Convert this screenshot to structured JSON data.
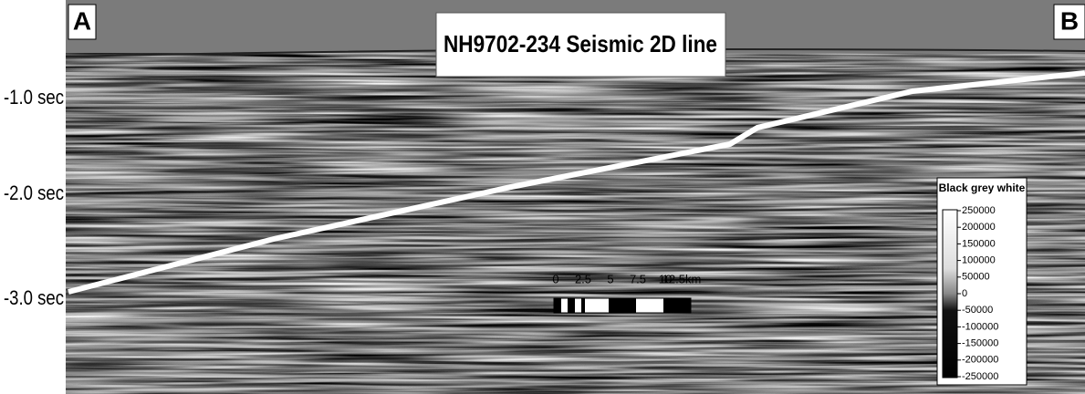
{
  "title": "NH9702-234 Seismic 2D line",
  "corner_labels": {
    "left": "A",
    "right": "B"
  },
  "time_labels": [
    "-1.0 sec",
    "-2.0 sec",
    "-3.0 sec"
  ],
  "scale_bar": {
    "labels": [
      "0",
      "2.5",
      "5",
      "7.5",
      "10",
      "12.5km"
    ]
  },
  "color_bar": {
    "title": "Black grey white",
    "ticks": [
      250000,
      200000,
      150000,
      100000,
      50000,
      0,
      -50000,
      -100000,
      -150000,
      -200000,
      -250000
    ]
  }
}
